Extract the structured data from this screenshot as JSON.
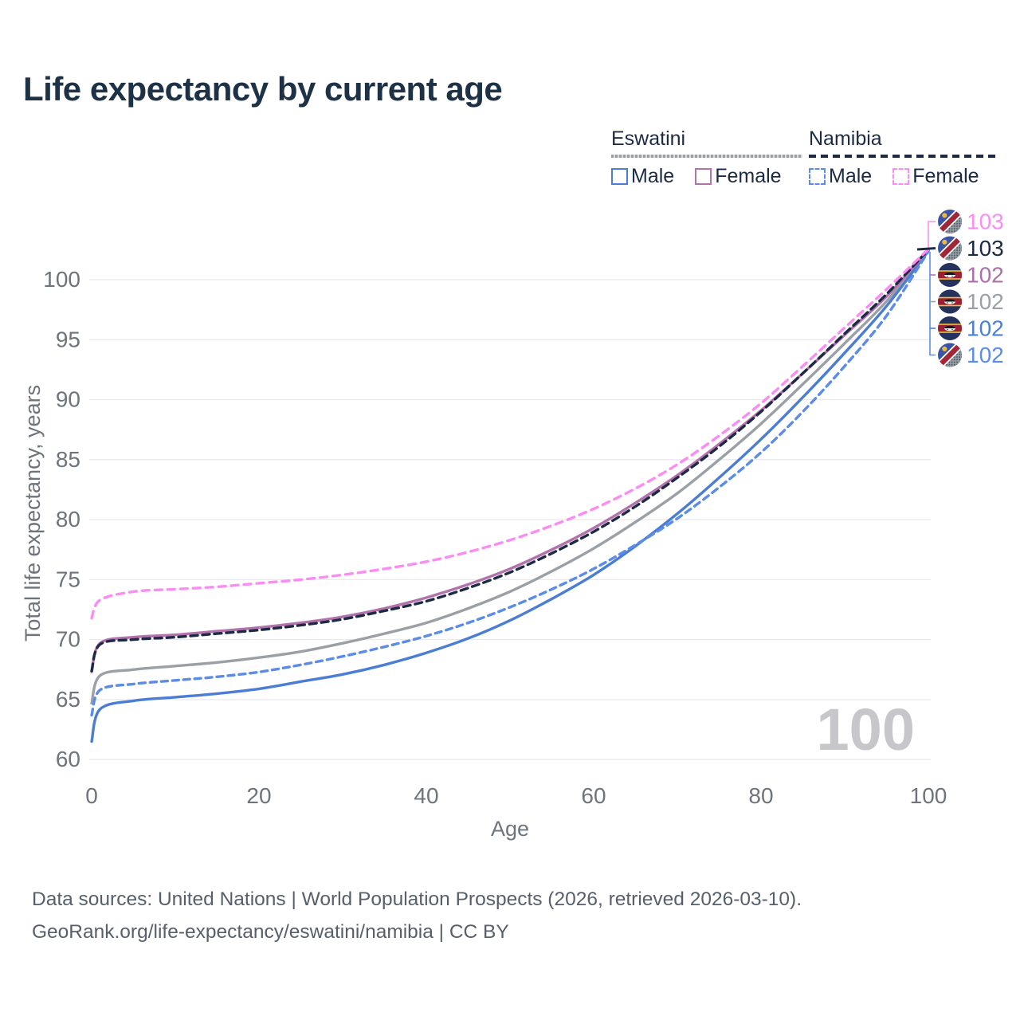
{
  "title": "Life expectancy by current age",
  "legend": {
    "eswatini": {
      "title": "Eswatini",
      "male": "Male",
      "female": "Female"
    },
    "namibia": {
      "title": "Namibia",
      "male": "Male",
      "female": "Female"
    }
  },
  "colors": {
    "eswatini_male": "#4a7dd3",
    "eswatini_female": "#b273ad",
    "eswatini_all": "#9aa0a6",
    "namibia_male": "#5b8cea",
    "namibia_female": "#fb8df2",
    "namibia_all": "#1c2b45",
    "title_text": "#1d3147",
    "axis_text": "#6e747c",
    "grid": "#eaeaec",
    "watermark": "#c6c6cb",
    "footer_text": "#575f6b"
  },
  "chart_data": {
    "type": "line",
    "title": "Life expectancy by current age",
    "xlabel": "Age",
    "ylabel": "Total life expectancy, years",
    "xlim": [
      0,
      100
    ],
    "ylim": [
      60,
      103
    ],
    "x_ticks": [
      0,
      20,
      40,
      60,
      80,
      100
    ],
    "y_ticks": [
      60,
      65,
      70,
      75,
      80,
      85,
      90,
      95,
      100
    ],
    "grid": true,
    "legend_position": "top-right",
    "watermark": "100",
    "x": [
      0,
      1,
      5,
      10,
      15,
      20,
      25,
      30,
      35,
      40,
      45,
      50,
      55,
      60,
      65,
      70,
      75,
      80,
      85,
      90,
      95,
      100
    ],
    "series": [
      {
        "name": "Namibia Female",
        "country": "Namibia",
        "sex": "Female",
        "flag": "namibia",
        "color": "#fb8df2",
        "dash": "9 7",
        "end_label": "103",
        "end_label_color": "#fb8df2",
        "values": [
          71.8,
          73.3,
          74.0,
          74.2,
          74.4,
          74.7,
          75.0,
          75.4,
          75.9,
          76.5,
          77.3,
          78.3,
          79.5,
          80.9,
          82.6,
          84.6,
          87.0,
          89.7,
          92.8,
          96.0,
          99.2,
          102.55
        ]
      },
      {
        "name": "Namibia",
        "country": "Namibia",
        "sex": "All",
        "flag": "namibia",
        "color": "#1c2b45",
        "dash": "9 6",
        "end_label": "103",
        "end_label_color": "#1c2b45",
        "values": [
          67.4,
          69.6,
          70.0,
          70.2,
          70.5,
          70.8,
          71.2,
          71.7,
          72.4,
          73.2,
          74.3,
          75.6,
          77.2,
          79.0,
          81.1,
          83.5,
          86.1,
          89.0,
          92.2,
          95.5,
          98.8,
          102.5
        ]
      },
      {
        "name": "Eswatini Female",
        "country": "Eswatini",
        "sex": "Female",
        "flag": "eswatini",
        "color": "#b273ad",
        "dash": "",
        "end_label": "102",
        "end_label_color": "#ad6fa8",
        "values": [
          67.3,
          69.7,
          70.2,
          70.4,
          70.7,
          71.0,
          71.4,
          71.9,
          72.6,
          73.5,
          74.6,
          75.9,
          77.5,
          79.3,
          81.4,
          83.7,
          86.3,
          89.1,
          92.2,
          95.4,
          98.6,
          102.46
        ]
      },
      {
        "name": "Eswatini",
        "country": "Eswatini",
        "sex": "All",
        "flag": "eswatini",
        "color": "#9aa0a6",
        "dash": "",
        "end_label": "102",
        "end_label_color": "#9aa0a6",
        "values": [
          64.7,
          67.0,
          67.5,
          67.8,
          68.1,
          68.5,
          69.0,
          69.7,
          70.5,
          71.4,
          72.6,
          74.0,
          75.7,
          77.6,
          79.8,
          82.2,
          85.0,
          88.0,
          91.3,
          94.7,
          98.2,
          102.43
        ]
      },
      {
        "name": "Eswatini Male",
        "country": "Eswatini",
        "sex": "Male",
        "flag": "eswatini",
        "color": "#4a7dd3",
        "dash": "",
        "end_label": "102",
        "end_label_color": "#4a7fd9",
        "values": [
          61.5,
          64.2,
          64.9,
          65.2,
          65.5,
          65.9,
          66.5,
          67.1,
          67.9,
          68.9,
          70.1,
          71.6,
          73.4,
          75.4,
          77.8,
          80.5,
          83.5,
          86.7,
          90.2,
          93.9,
          97.8,
          102.4
        ]
      },
      {
        "name": "Namibia Male",
        "country": "Namibia",
        "sex": "Male",
        "flag": "namibia",
        "color": "#5b8cea",
        "dash": "8 6",
        "end_label": "102",
        "end_label_color": "#5b8cea",
        "values": [
          63.7,
          65.8,
          66.3,
          66.6,
          66.9,
          67.3,
          67.9,
          68.6,
          69.4,
          70.3,
          71.4,
          72.7,
          74.2,
          75.9,
          77.9,
          80.1,
          82.7,
          85.6,
          89.0,
          92.8,
          97.0,
          102.36
        ]
      }
    ]
  },
  "footer": {
    "line1": "Data sources: United Nations | World Population Prospects (2026, retrieved 2026-03-10).",
    "line2": "GeoRank.org/life-expectancy/eswatini/namibia | CC BY"
  }
}
